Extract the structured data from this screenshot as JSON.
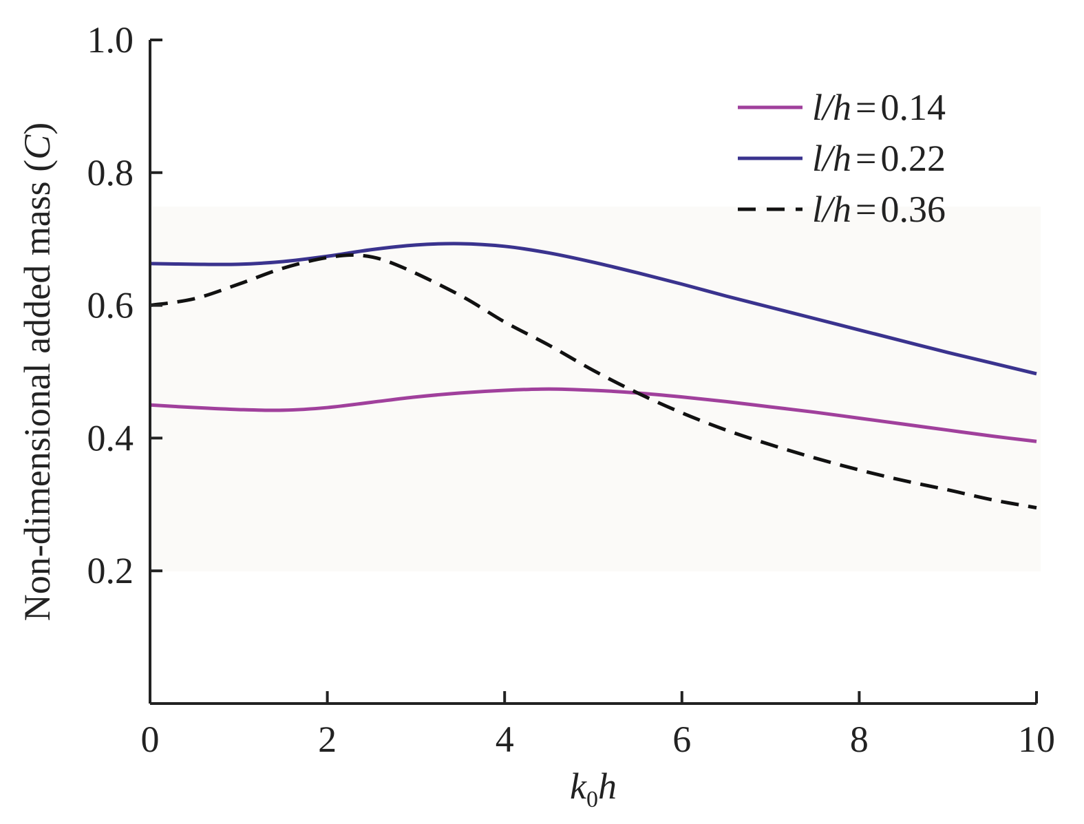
{
  "chart_data": {
    "type": "line",
    "xlabel": "k0h",
    "xlabel_parts": {
      "base": "k",
      "subscript": "0",
      "tail": "h"
    },
    "ylabel": "Non-dimensional added mass (C)",
    "ylabel_parts": {
      "main": "Non-dimensional added mass (",
      "var": "C",
      "close": ")"
    },
    "xlim": [
      0,
      10
    ],
    "ylim": [
      0,
      1.0
    ],
    "x_ticks": [
      "0",
      "2",
      "4",
      "6",
      "8",
      "10"
    ],
    "y_ticks": [
      "0.2",
      "0.4",
      "0.6",
      "0.8",
      "1.0"
    ],
    "grid": false,
    "legend_position": "top-right",
    "series": [
      {
        "name": "l/h = 0.14",
        "label_var": "l/h",
        "label_eq": "=",
        "label_val": "0.14",
        "color": "#a0409c",
        "dash": "solid",
        "x": [
          0,
          0.5,
          1,
          1.5,
          2,
          2.5,
          3,
          3.5,
          4,
          4.5,
          5,
          5.5,
          6,
          6.5,
          7,
          7.5,
          8,
          8.5,
          9,
          9.5,
          10
        ],
        "y": [
          0.45,
          0.446,
          0.443,
          0.442,
          0.446,
          0.454,
          0.462,
          0.468,
          0.472,
          0.474,
          0.472,
          0.468,
          0.462,
          0.455,
          0.447,
          0.439,
          0.43,
          0.421,
          0.412,
          0.403,
          0.395
        ]
      },
      {
        "name": "l/h = 0.22",
        "label_var": "l/h",
        "label_eq": "=",
        "label_val": "0.22",
        "color": "#3a338e",
        "dash": "solid",
        "x": [
          0,
          0.5,
          1,
          1.5,
          2,
          2.5,
          3,
          3.5,
          4,
          4.5,
          5,
          5.5,
          6,
          6.5,
          7,
          7.5,
          8,
          8.5,
          9,
          9.5,
          10
        ],
        "y": [
          0.663,
          0.662,
          0.662,
          0.666,
          0.674,
          0.684,
          0.691,
          0.693,
          0.689,
          0.679,
          0.665,
          0.649,
          0.632,
          0.614,
          0.597,
          0.58,
          0.563,
          0.546,
          0.529,
          0.513,
          0.497
        ]
      },
      {
        "name": "l/h = 0.36",
        "label_var": "l/h",
        "label_eq": "=",
        "label_val": "0.36",
        "color": "#111111",
        "dash": "dashed",
        "x": [
          0,
          0.5,
          1,
          1.5,
          2,
          2.4,
          2.8,
          3.5,
          4,
          4.5,
          5,
          5.5,
          6,
          6.5,
          7,
          7.5,
          8,
          8.5,
          9,
          9.5,
          10
        ],
        "y": [
          0.6,
          0.61,
          0.632,
          0.656,
          0.672,
          0.675,
          0.66,
          0.615,
          0.575,
          0.54,
          0.502,
          0.468,
          0.438,
          0.412,
          0.39,
          0.37,
          0.352,
          0.336,
          0.322,
          0.307,
          0.295
        ]
      }
    ]
  }
}
